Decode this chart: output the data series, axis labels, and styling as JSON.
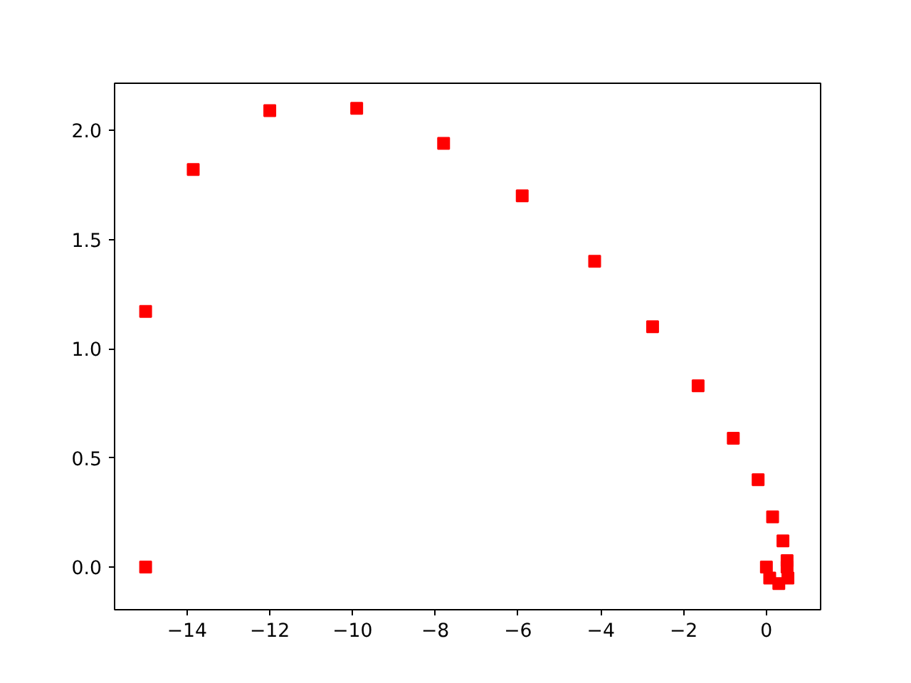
{
  "chart_data": {
    "type": "scatter",
    "marker": "square",
    "grid": false,
    "xlim": [
      -15.75,
      1.31
    ],
    "ylim": [
      -0.195,
      2.215
    ],
    "xticks": [
      {
        "value": -14,
        "label": "−14"
      },
      {
        "value": -12,
        "label": "−12"
      },
      {
        "value": -10,
        "label": "−10"
      },
      {
        "value": -8,
        "label": "−8"
      },
      {
        "value": -6,
        "label": "−6"
      },
      {
        "value": -4,
        "label": "−4"
      },
      {
        "value": -2,
        "label": "−2"
      },
      0
    ],
    "yticks": [
      {
        "value": 0,
        "label": "0.0"
      },
      0.5,
      {
        "value": 1,
        "label": "1.0"
      },
      1.5,
      {
        "value": 2,
        "label": "2.0"
      }
    ],
    "series": [
      {
        "color": "#ff0000",
        "x": [
          -15,
          -15,
          -13.85,
          -12,
          -9.9,
          -7.8,
          -5.9,
          -4.15,
          -2.75,
          -1.65,
          -0.8,
          -0.2,
          0.15,
          0.4,
          0.5,
          0.5,
          0.0,
          0.08,
          0.3,
          0.52
        ],
        "values": [
          1.17,
          0,
          1.82,
          2.09,
          2.1,
          1.94,
          1.7,
          1.4,
          1.1,
          0.83,
          0.59,
          0.4,
          0.23,
          0.12,
          0.03,
          0.0,
          0.0,
          -0.05,
          -0.075,
          -0.05
        ]
      }
    ]
  }
}
